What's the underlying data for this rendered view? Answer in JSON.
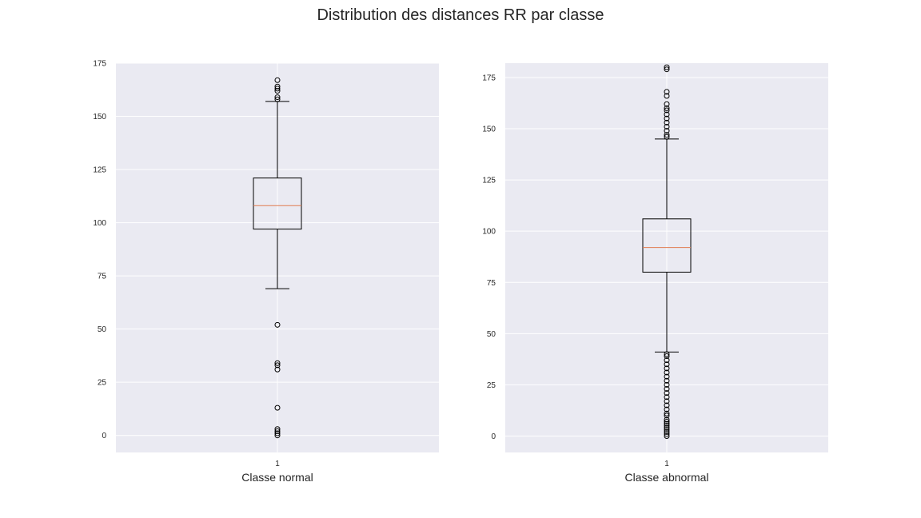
{
  "figure": {
    "title": "Distribution des distances RR par classe"
  },
  "chart_data": [
    {
      "type": "box",
      "xlabel": "Classe normal",
      "xticks": [
        "1"
      ],
      "ylim": [
        -8,
        175
      ],
      "yticks": [
        0,
        25,
        50,
        75,
        100,
        125,
        150,
        175
      ],
      "grid": true,
      "box": {
        "whisker_low": 69,
        "q1": 97,
        "median": 108,
        "q3": 121,
        "whisker_high": 157,
        "outliers": [
          0,
          1,
          2,
          3,
          13,
          31,
          33,
          34,
          52,
          158,
          159,
          162,
          163,
          164,
          167
        ]
      },
      "colors": {
        "median": "#e07b4f",
        "box": "#000000",
        "background": "#eaeaf2",
        "grid": "#ffffff"
      }
    },
    {
      "type": "box",
      "xlabel": "Classe abnormal",
      "xticks": [
        "1"
      ],
      "ylim": [
        -8,
        182
      ],
      "yticks": [
        0,
        25,
        50,
        75,
        100,
        125,
        150,
        175
      ],
      "grid": true,
      "box": {
        "whisker_low": 41,
        "q1": 80,
        "median": 92,
        "q3": 106,
        "whisker_high": 145,
        "outliers": [
          0,
          1,
          2,
          3,
          4,
          5,
          6,
          7,
          8,
          10,
          11,
          13,
          15,
          17,
          19,
          21,
          23,
          25,
          27,
          29,
          31,
          33,
          35,
          37,
          39,
          40,
          146,
          147,
          149,
          151,
          153,
          155,
          157,
          159,
          160,
          162,
          166,
          168,
          179,
          180
        ]
      },
      "colors": {
        "median": "#e07b4f",
        "box": "#000000",
        "background": "#eaeaf2",
        "grid": "#ffffff"
      }
    }
  ]
}
